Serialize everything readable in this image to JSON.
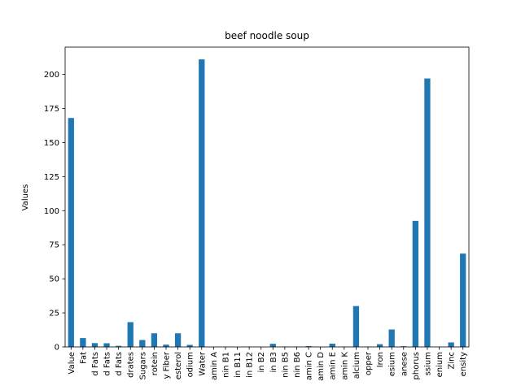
{
  "chart_data": {
    "type": "bar",
    "title": "beef noodle soup",
    "xlabel": "",
    "ylabel": "Values",
    "ylim": [
      0,
      220
    ],
    "yticks": [
      0,
      25,
      50,
      75,
      100,
      125,
      150,
      175,
      200
    ],
    "grid": false,
    "legend": "none",
    "bar_color": "#1f77b4",
    "categories": [
      "Value",
      "Fat",
      "d Fats",
      "d Fats",
      "d Fats",
      "drates",
      "Sugars",
      "rotein",
      "y Fiber",
      "esterol",
      "odium",
      "Water",
      "amin A",
      "nin B1",
      "in B11",
      "in B12",
      "in B2",
      "in B3",
      "nin B5",
      "nin B6",
      "amin C",
      "amin D",
      "amin E",
      "amin K",
      "alcium",
      "opper",
      "Iron",
      "esium",
      "anese",
      "phorus",
      "ssium",
      "enium",
      "Zinc",
      "ensity"
    ],
    "values": [
      168,
      6.5,
      2.8,
      2.7,
      0.8,
      18.2,
      5.1,
      10.0,
      1.7,
      10.0,
      1.5,
      211,
      0.1,
      0.1,
      0.05,
      0.2,
      0.1,
      2.3,
      0.3,
      0.2,
      0.6,
      0.05,
      2.4,
      0.2,
      30.0,
      0.2,
      2.0,
      12.8,
      0.5,
      92.5,
      197,
      0.1,
      3.3,
      68.5
    ]
  }
}
